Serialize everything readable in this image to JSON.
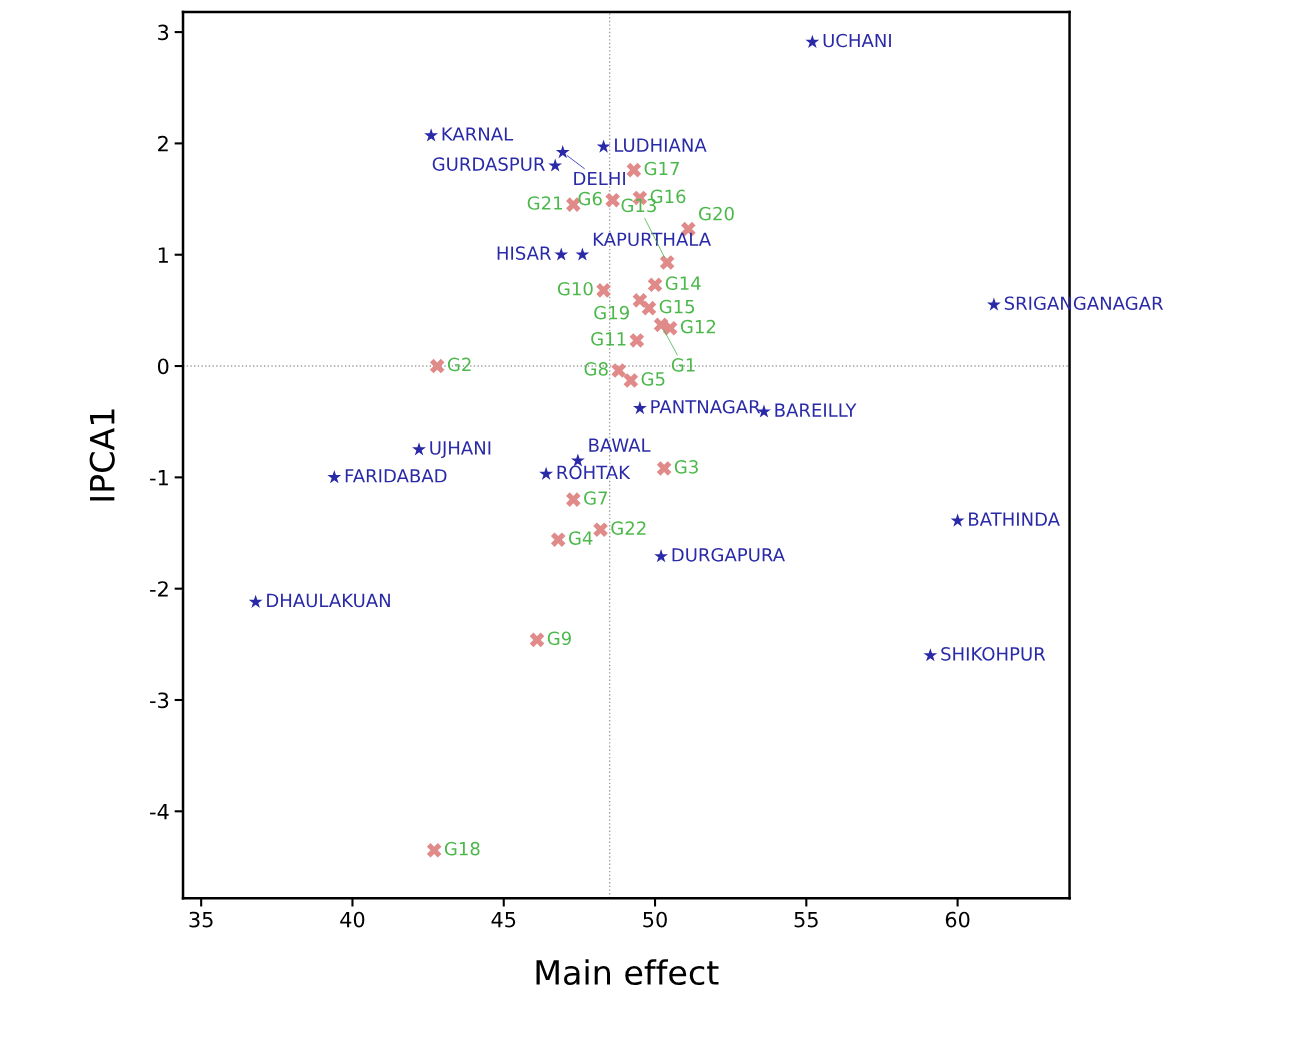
{
  "chart_data": {
    "type": "scatter",
    "xlabel": "Main effect",
    "ylabel": "IPCA1",
    "xlim": [
      34.4,
      63.7
    ],
    "ylim": [
      -4.78,
      3.18
    ],
    "xticks": [
      35,
      40,
      45,
      50,
      55,
      60
    ],
    "yticks": [
      -4,
      -3,
      -2,
      -1,
      0,
      1,
      2,
      3
    ],
    "grid": false,
    "legend": false,
    "ref_lines": [
      {
        "axis": "x",
        "value": 48.5,
        "color": "#a0a0a0",
        "line_style": "dotted"
      },
      {
        "axis": "y",
        "value": 0,
        "color": "#a0a0a0",
        "line_style": "dotted"
      }
    ],
    "series": [
      {
        "color": "#4cb84c",
        "colors": [
          "#e08a8a",
          "#e08a8a",
          "#e08a8a",
          "#e08a8a",
          "#e08a8a",
          "#e08a8a",
          "#e08a8a",
          "#e08a8a",
          "#e08a8a",
          "#e08a8a",
          "#e08a8a",
          "#e08a8a",
          "#e08a8a",
          "#e08a8a",
          "#e08a8a",
          "#e08a8a",
          "#e08a8a",
          "#e08a8a",
          "#e08a8a",
          "#e08a8a",
          "#e08a8a",
          "#e08a8a"
        ],
        "marker": "cross",
        "x": [
          42.8,
          47.3,
          48.6,
          49.5,
          49.3,
          48.3,
          50.0,
          50.4,
          51.1,
          49.5,
          49.8,
          50.5,
          50.2,
          49.4,
          48.8,
          49.2,
          50.3,
          47.3,
          48.2,
          46.8,
          46.1,
          42.7
        ],
        "values": [
          0.0,
          1.45,
          1.49,
          1.51,
          1.76,
          0.68,
          0.73,
          0.93,
          1.23,
          0.59,
          0.52,
          0.34,
          0.37,
          0.23,
          -0.04,
          -0.13,
          -0.92,
          -1.2,
          -1.47,
          -1.56,
          -2.46,
          -4.35
        ],
        "value_labels": [
          "G2",
          "G21",
          "G6",
          "G16",
          "G17",
          "G10",
          "G14",
          "G13",
          "G20",
          "G19",
          "G15",
          "G12",
          "G1",
          "G11",
          "G8",
          "G5",
          "G3",
          "G7",
          "G22",
          "G4",
          "G9",
          "G18"
        ]
      },
      {
        "color": "#2a2aa8",
        "marker": "star",
        "x": [
          55.2,
          42.6,
          46.95,
          48.3,
          46.7,
          46.9,
          47.6,
          61.2,
          49.5,
          53.6,
          42.2,
          47.45,
          39.4,
          46.4,
          60.0,
          50.2,
          36.8,
          59.1
        ],
        "values": [
          2.91,
          2.07,
          1.92,
          1.97,
          1.8,
          1.0,
          1.0,
          0.55,
          -0.38,
          -0.41,
          -0.75,
          -0.85,
          -1.0,
          -0.97,
          -1.39,
          -1.71,
          -2.12,
          -2.6
        ],
        "value_labels": [
          "UCHANI",
          "KARNAL",
          "DELHI",
          "LUDHIANA",
          "GURDASPUR",
          "HISAR",
          "KAPURTHALA",
          "SRIGANGANAGAR",
          "PANTNAGAR",
          "BAREILLY",
          "UJHANI",
          "BAWAL",
          "FARIDABAD",
          "ROHTAK",
          "BATHINDA",
          "DURGAPURA",
          "DHAULAKUAN",
          "SHIKOHPUR"
        ]
      }
    ]
  }
}
